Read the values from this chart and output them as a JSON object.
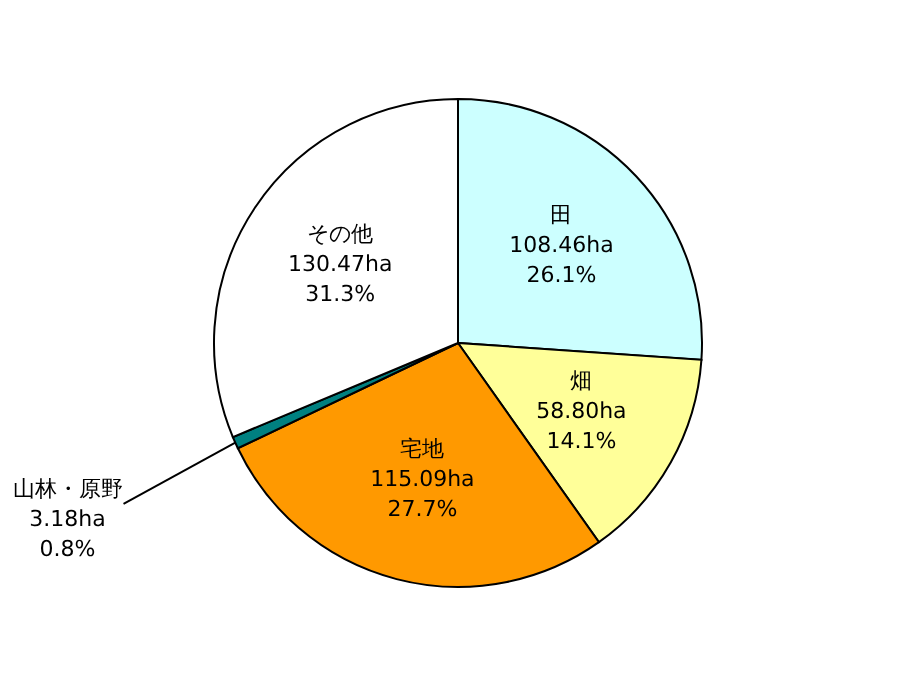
{
  "chart_data": {
    "type": "pie",
    "categories": [
      "田",
      "畑",
      "宅地",
      "山林・原野",
      "その他"
    ],
    "values": [
      26.1,
      14.1,
      27.7,
      0.8,
      31.3
    ],
    "colors": [
      "#ccffff",
      "#ffff99",
      "#ff9900",
      "#008080",
      "#ffffff"
    ],
    "value_labels": [
      [
        "108.46ha",
        "26.1%"
      ],
      [
        "58.80ha",
        "14.1%"
      ],
      [
        "115.09ha",
        "27.7%"
      ],
      [
        "3.18ha",
        "0.8%"
      ],
      [
        "130.47ha",
        "31.3%"
      ]
    ]
  }
}
